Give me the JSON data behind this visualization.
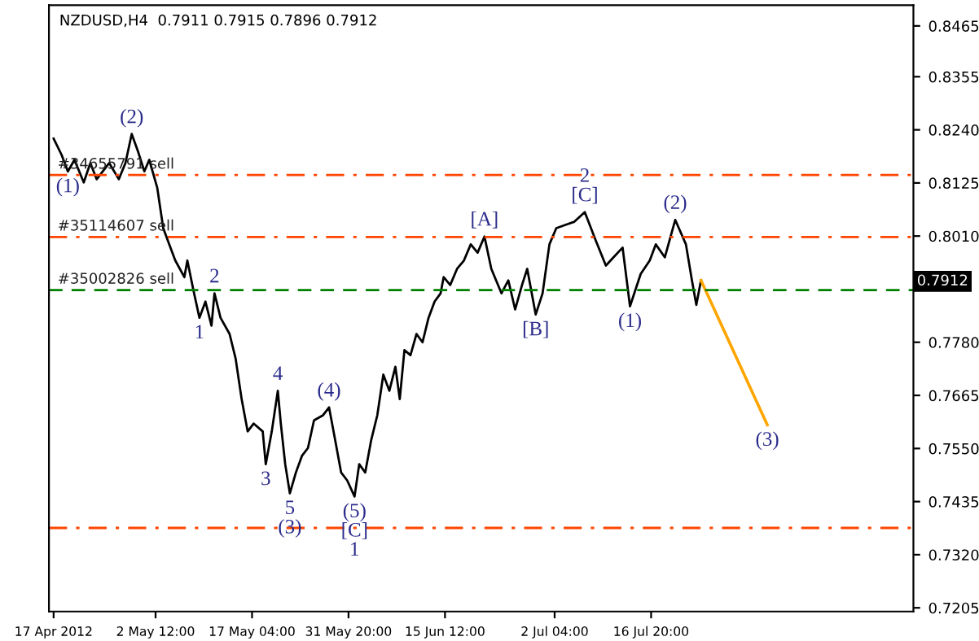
{
  "chart_data": {
    "type": "line",
    "title": "NZDUSD,H4  0.7911 0.7915 0.7896 0.7912",
    "series": [
      {
        "color": "#000000",
        "x": [
          "2012-04-17T00:00",
          "2012-04-18T05:00",
          "2012-04-19T04:00",
          "2012-04-20T04:00",
          "2012-04-21T14:00",
          "2012-04-22T14:00",
          "2012-04-23T13:00",
          "2012-04-25T11:00",
          "2012-04-26T22:00",
          "2012-04-27T22:00",
          "2012-04-28T21:00",
          "2012-04-29T20:00",
          "2012-04-30T19:00",
          "2012-05-01T13:00",
          "2012-05-02T18:00",
          "2012-05-03T16:00",
          "2012-05-04T14:00",
          "2012-05-05T12:00",
          "2012-05-06T21:00",
          "2012-05-07T08:00",
          "2012-05-08T06:00",
          "2012-05-09T04:00",
          "2012-05-10T02:00",
          "2012-05-11T00:00",
          "2012-05-11T11:00",
          "2012-05-12T09:00",
          "2012-05-13T18:00",
          "2012-05-14T16:00",
          "2012-05-15T14:00",
          "2012-05-16T12:00",
          "2012-05-17T10:00",
          "2012-05-18T19:00",
          "2012-05-19T06:00",
          "2012-05-20T04:00",
          "2012-05-21T02:00",
          "2012-05-21T13:00",
          "2012-05-22T05:00",
          "2012-05-22T22:00",
          "2012-05-23T20:00",
          "2012-05-24T18:00",
          "2012-05-25T16:00",
          "2012-05-26T14:00",
          "2012-05-27T23:00",
          "2012-05-28T21:00",
          "2012-05-29T19:00",
          "2012-05-30T17:00",
          "2012-05-31T15:00",
          "2012-06-01T18:00",
          "2012-06-02T11:00",
          "2012-06-03T09:00",
          "2012-06-04T07:00",
          "2012-06-05T05:00",
          "2012-06-06T03:00",
          "2012-06-07T01:00",
          "2012-06-07T23:00",
          "2012-06-08T15:00",
          "2012-06-09T08:00",
          "2012-06-10T06:00",
          "2012-06-11T04:00",
          "2012-06-12T02:00",
          "2012-06-13T00:00",
          "2012-06-13T22:00",
          "2012-06-14T20:00",
          "2012-06-15T07:00",
          "2012-06-16T07:00",
          "2012-06-17T08:00",
          "2012-06-18T09:00",
          "2012-06-19T10:00",
          "2012-06-20T11:00",
          "2012-06-21T12:00",
          "2012-06-22T13:00",
          "2012-06-24T02:00",
          "2012-06-25T03:00",
          "2012-06-26T04:00",
          "2012-06-27T05:00",
          "2012-06-28T00:00",
          "2012-06-29T07:00",
          "2012-06-30T08:00",
          "2012-07-01T09:00",
          "2012-07-02T10:00",
          "2012-07-03T19:00",
          "2012-07-05T04:00",
          "2012-07-06T18:00",
          "2012-07-08T09:00",
          "2012-07-09T23:00",
          "2012-07-11T03:00",
          "2012-07-12T12:00",
          "2012-07-13T15:00",
          "2012-07-15T06:00",
          "2012-07-16T15:00",
          "2012-07-17T13:00",
          "2012-07-18T22:00",
          "2012-07-20T12:00",
          "2012-07-22T03:00",
          "2012-07-23T01:00",
          "2012-07-23T17:00",
          "2012-07-24T10:00"
        ],
        "values": [
          0.8221,
          0.8186,
          0.815,
          0.8175,
          0.8126,
          0.8168,
          0.8133,
          0.8168,
          0.8133,
          0.8168,
          0.8231,
          0.8193,
          0.815,
          0.8175,
          0.8115,
          0.8027,
          0.7992,
          0.7957,
          0.7921,
          0.7957,
          0.7893,
          0.7833,
          0.7868,
          0.7816,
          0.7886,
          0.7833,
          0.7798,
          0.7745,
          0.7657,
          0.7587,
          0.7604,
          0.7587,
          0.7516,
          0.7587,
          0.7675,
          0.7604,
          0.7516,
          0.7453,
          0.7498,
          0.7534,
          0.7551,
          0.7611,
          0.7622,
          0.7639,
          0.7569,
          0.7498,
          0.7481,
          0.7446,
          0.7516,
          0.7498,
          0.7569,
          0.7622,
          0.771,
          0.7675,
          0.7727,
          0.7657,
          0.7763,
          0.7752,
          0.7798,
          0.778,
          0.7833,
          0.7868,
          0.7886,
          0.7921,
          0.7904,
          0.7939,
          0.7957,
          0.7992,
          0.7974,
          0.8009,
          0.7939,
          0.7886,
          0.7914,
          0.7851,
          0.7904,
          0.7939,
          0.784,
          0.7886,
          0.7992,
          0.8027,
          0.8034,
          0.8041,
          0.8062,
          0.8002,
          0.7946,
          0.7964,
          0.7985,
          0.7858,
          0.7928,
          0.7957,
          0.7992,
          0.7964,
          0.8045,
          0.7992,
          0.7914,
          0.7861,
          0.7914
        ]
      },
      {
        "color": "#ffa500",
        "x": [
          "2012-07-24T10:00",
          "2012-08-03T12:00"
        ],
        "values": [
          0.7914,
          0.7601
        ]
      }
    ],
    "xlim": [
      "2012-04-16T07:00",
      "2012-08-25T17:00"
    ],
    "xticks": [
      {
        "value": "2012-04-17T00:00",
        "label": "17 Apr 2012"
      },
      {
        "value": "2012-05-02T12:00",
        "label": "2 May 12:00"
      },
      {
        "value": "2012-05-17T04:00",
        "label": "17 May 04:00"
      },
      {
        "value": "2012-05-31T20:00",
        "label": "31 May 20:00"
      },
      {
        "value": "2012-06-15T12:00",
        "label": "15 Jun 12:00"
      },
      {
        "value": "2012-07-02T04:00",
        "label": "2 Jul 04:00"
      },
      {
        "value": "2012-07-16T20:00",
        "label": "16 Jul 20:00"
      }
    ],
    "ylim": [
      0.7197,
      0.851
    ],
    "yticks": [
      {
        "value": 0.8465,
        "label": "0.8465"
      },
      {
        "value": 0.8355,
        "label": "0.8355"
      },
      {
        "value": 0.824,
        "label": "0.8240"
      },
      {
        "value": 0.8125,
        "label": "0.8125"
      },
      {
        "value": 0.801,
        "label": "0.8010"
      },
      {
        "value": 0.7895,
        "label": null
      },
      {
        "value": 0.778,
        "label": "0.7780"
      },
      {
        "value": 0.7665,
        "label": "0.7665"
      },
      {
        "value": 0.755,
        "label": "0.7550"
      },
      {
        "value": 0.7435,
        "label": "0.7435"
      },
      {
        "value": 0.732,
        "label": "0.7320"
      },
      {
        "value": 0.7205,
        "label": "0.7205"
      }
    ],
    "ref_lines": [
      {
        "axis": "y",
        "value": 0.8142,
        "label": "#34655791 sell",
        "color": "#ff4500",
        "line_style": "dashdot"
      },
      {
        "axis": "y",
        "value": 0.8008,
        "label": "#35114607 sell",
        "color": "#ff4500",
        "line_style": "dashdot"
      },
      {
        "axis": "y",
        "value": 0.7893,
        "label": "#35002826 sell",
        "color": "#008000",
        "line_style": "dashed"
      },
      {
        "axis": "y",
        "value": 0.7378,
        "color": "#ff4500",
        "line_style": "dashdot"
      }
    ],
    "annotations": [
      {
        "text": "(1)",
        "x": "2012-04-19T04:00",
        "y": 0.815
      },
      {
        "text": "(2)",
        "x": "2012-04-28T21:00",
        "y": 0.8231
      },
      {
        "text": "2",
        "x": "2012-05-11T11:00",
        "y": 0.7886
      },
      {
        "text": "1",
        "x": "2012-05-09T04:00",
        "y": 0.7833
      },
      {
        "text": "4",
        "x": "2012-05-21T02:00",
        "y": 0.7675
      },
      {
        "text": "(4)",
        "x": "2012-05-28T21:00",
        "y": 0.7639
      },
      {
        "text": "3",
        "x": "2012-05-19T06:00",
        "y": 0.7516
      },
      {
        "text": "5",
        "x": "2012-05-22T22:00",
        "y": 0.7453
      },
      {
        "text": "(3)",
        "x": "2012-05-22T22:00",
        "y": 0.7453
      },
      {
        "text": "(5)",
        "x": "2012-06-01T18:00",
        "y": 0.7446
      },
      {
        "text": "[C]",
        "x": "2012-06-01T18:00",
        "y": 0.7446
      },
      {
        "text": "1",
        "x": "2012-06-01T18:00",
        "y": 0.7446
      },
      {
        "text": "[A]",
        "x": "2012-06-21T12:00",
        "y": 0.8009
      },
      {
        "text": "[B]",
        "x": "2012-06-29T07:00",
        "y": 0.784
      },
      {
        "text": "[C]",
        "x": "2012-07-06T18:00",
        "y": 0.8062
      },
      {
        "text": "2",
        "x": "2012-07-06T18:00",
        "y": 0.8062
      },
      {
        "text": "(1)",
        "x": "2012-07-13T15:00",
        "y": 0.7858
      },
      {
        "text": "(2)",
        "x": "2012-07-20T12:00",
        "y": 0.8045
      },
      {
        "text": "(3)",
        "x": "2012-08-03T12:00",
        "y": 0.7601
      },
      {
        "text": "0.7912",
        "y": 0.7912
      }
    ],
    "grid": false,
    "legend": false
  }
}
